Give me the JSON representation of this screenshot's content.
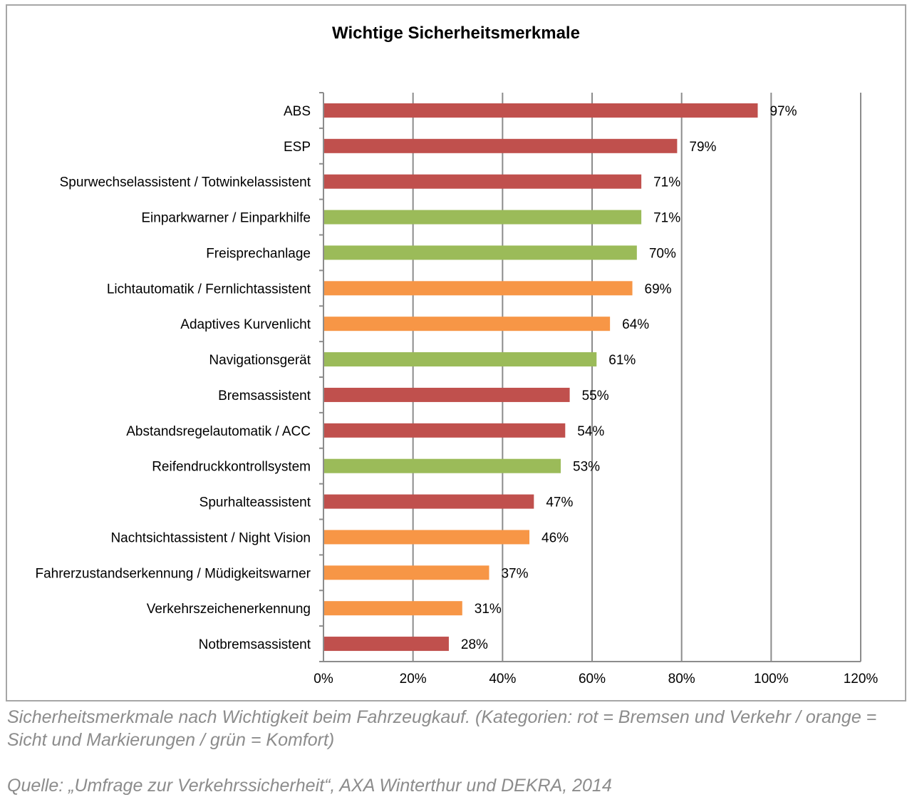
{
  "chart_data": {
    "type": "bar",
    "orientation": "horizontal",
    "title": "Wichtige Sicherheitsmerkmale",
    "xlabel": "",
    "ylabel": "",
    "xlim": [
      0,
      120
    ],
    "x_ticks": [
      "0%",
      "20%",
      "40%",
      "60%",
      "80%",
      "100%",
      "120%"
    ],
    "grid": "vertical",
    "categories": [
      "ABS",
      "ESP",
      "Spurwechselassistent / Totwinkelassistent",
      "Einparkwarner / Einparkhilfe",
      "Freisprechanlage",
      "Lichtautomatik / Fernlichtassistent",
      "Adaptives Kurvenlicht",
      "Navigationsgerät",
      "Bremsassistent",
      "Abstandsregelautomatik / ACC",
      "Reifendruckkontrollsystem",
      "Spurhalteassistent",
      "Nachtsichtassistent / Night Vision",
      "Fahrerzustandserkennung / Müdigkeitswarner",
      "Verkehrszeichenerkennung",
      "Notbremsassistent"
    ],
    "values": [
      97,
      79,
      71,
      71,
      70,
      69,
      64,
      61,
      55,
      54,
      53,
      47,
      46,
      37,
      31,
      28
    ],
    "value_labels": [
      "97%",
      "79%",
      "71%",
      "71%",
      "70%",
      "69%",
      "64%",
      "61%",
      "55%",
      "54%",
      "53%",
      "47%",
      "46%",
      "37%",
      "31%",
      "28%"
    ],
    "bar_colors": [
      "#c0504d",
      "#c0504d",
      "#c0504d",
      "#9bbb59",
      "#9bbb59",
      "#f79646",
      "#f79646",
      "#9bbb59",
      "#c0504d",
      "#c0504d",
      "#9bbb59",
      "#c0504d",
      "#f79646",
      "#f79646",
      "#f79646",
      "#c0504d"
    ]
  },
  "caption": {
    "line1": "Sicherheitsmerkmale nach Wichtigkeit beim Fahrzeugkauf. (Kategorien: rot = Bremsen und Verkehr / orange = Sicht und Markierungen / grün = Komfort)",
    "source": "Quelle: „Umfrage zur Verkehrssicherheit“, AXA Winterthur und DEKRA, 2014"
  }
}
